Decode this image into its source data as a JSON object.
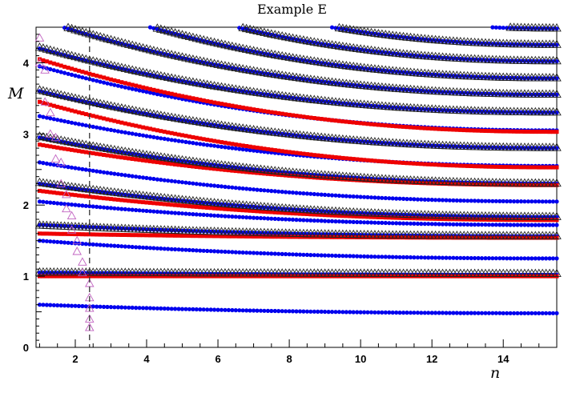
{
  "chart_data": {
    "type": "scatter",
    "title": "Example E",
    "xlabel": "n",
    "ylabel": "M",
    "xlim": [
      0.9,
      15.5
    ],
    "ylim": [
      0,
      4.5
    ],
    "x_ticks": [
      2,
      4,
      6,
      8,
      10,
      12,
      14
    ],
    "y_ticks": [
      0,
      1,
      2,
      3,
      4
    ],
    "grid": false,
    "legend": "none",
    "vline": {
      "x": 2.4,
      "style": "dashed",
      "color": "#333333"
    },
    "x_sampling": {
      "start": 1.0,
      "end": 15.5,
      "step": 0.1
    },
    "series": [
      {
        "marker": "circle",
        "color": "#0000ee",
        "curves": [
          {
            "at_start": 0.6,
            "at_end": 0.48
          },
          {
            "at_start": 1.05,
            "at_end": 1.02
          },
          {
            "at_start": 1.5,
            "at_end": 1.25
          },
          {
            "at_start": 1.72,
            "at_end": 1.56
          },
          {
            "at_start": 2.05,
            "at_end": 1.72
          },
          {
            "at_start": 2.3,
            "at_end": 1.83
          },
          {
            "at_start": 2.6,
            "at_end": 2.05
          },
          {
            "at_start": 2.95,
            "at_end": 2.3
          },
          {
            "at_start": 3.25,
            "at_end": 2.55
          },
          {
            "at_start": 3.6,
            "at_end": 2.8
          },
          {
            "at_start": 3.95,
            "at_end": 3.05
          },
          {
            "at_start": 4.2,
            "at_end": 3.3
          },
          {
            "at_start": 4.6,
            "at_end": 3.55
          },
          {
            "at_start": 5.0,
            "at_end": 3.78
          },
          {
            "at_start": 5.4,
            "at_end": 4.02
          },
          {
            "at_start": 5.8,
            "at_end": 4.25
          },
          {
            "at_start": 6.3,
            "at_end": 4.48
          }
        ]
      },
      {
        "marker": "square",
        "color": "#ee0000",
        "curves": [
          {
            "at_start": 1.0,
            "at_end": 1.0
          },
          {
            "at_start": 1.6,
            "at_end": 1.54
          },
          {
            "at_start": 2.2,
            "at_end": 1.79
          },
          {
            "at_start": 2.85,
            "at_end": 2.28
          },
          {
            "at_start": 3.45,
            "at_end": 2.53
          },
          {
            "at_start": 4.05,
            "at_end": 3.03
          }
        ]
      },
      {
        "marker": "triangle",
        "color": "#222222",
        "curves": [
          {
            "at_start": 1.06,
            "at_end": 1.04
          },
          {
            "at_start": 1.72,
            "at_end": 1.57
          },
          {
            "at_start": 2.32,
            "at_end": 1.84
          },
          {
            "at_start": 2.97,
            "at_end": 2.31
          },
          {
            "at_start": 3.62,
            "at_end": 2.81
          },
          {
            "at_start": 4.22,
            "at_end": 3.31
          },
          {
            "at_start": 4.62,
            "at_end": 3.56
          },
          {
            "at_start": 5.02,
            "at_end": 3.79
          },
          {
            "at_start": 5.42,
            "at_end": 4.03
          },
          {
            "at_start": 5.82,
            "at_end": 4.26
          },
          {
            "at_start": 6.32,
            "at_end": 4.49
          }
        ]
      },
      {
        "marker": "triangle",
        "color": "#c060c0",
        "x": [
          1.0,
          1.0,
          1.15,
          1.15,
          1.3,
          1.3,
          1.45,
          1.45,
          1.6,
          1.6,
          1.75,
          1.75,
          1.9,
          1.9,
          2.05,
          2.05,
          2.2,
          2.2,
          2.4,
          2.4,
          2.4,
          2.4,
          2.4
        ],
        "y": [
          4.35,
          4.0,
          3.9,
          3.45,
          3.3,
          3.0,
          2.95,
          2.65,
          2.6,
          2.3,
          2.15,
          1.95,
          1.85,
          1.65,
          1.5,
          1.35,
          1.2,
          1.05,
          0.9,
          0.7,
          0.55,
          0.4,
          0.28
        ]
      }
    ]
  }
}
